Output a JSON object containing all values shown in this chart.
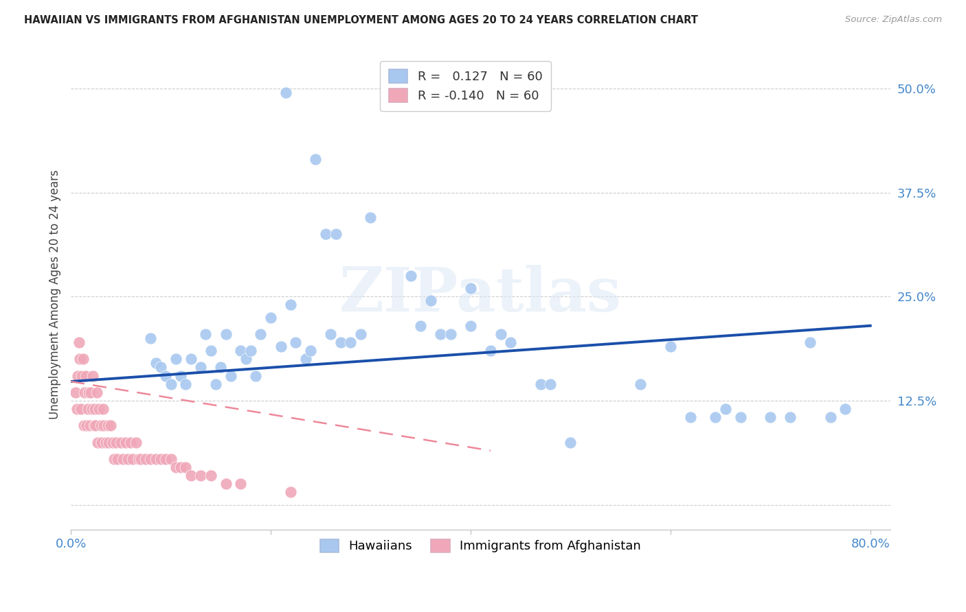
{
  "title": "HAWAIIAN VS IMMIGRANTS FROM AFGHANISTAN UNEMPLOYMENT AMONG AGES 20 TO 24 YEARS CORRELATION CHART",
  "source": "Source: ZipAtlas.com",
  "ylabel": "Unemployment Among Ages 20 to 24 years",
  "xlim": [
    0.0,
    0.82
  ],
  "ylim": [
    -0.03,
    0.535
  ],
  "xticks": [
    0.0,
    0.2,
    0.4,
    0.6,
    0.8
  ],
  "xticklabels": [
    "0.0%",
    "",
    "",
    "",
    "80.0%"
  ],
  "yticks": [
    0.0,
    0.125,
    0.25,
    0.375,
    0.5
  ],
  "yticklabels": [
    "",
    "12.5%",
    "25.0%",
    "37.5%",
    "50.0%"
  ],
  "blue_R": 0.127,
  "blue_N": 60,
  "pink_R": -0.14,
  "pink_N": 60,
  "blue_color": "#a8c8f0",
  "pink_color": "#f0a8b8",
  "blue_line_color": "#1a4faa",
  "pink_line_color": "#ee8899",
  "tick_color": "#4488cc",
  "grid_color": "#cccccc",
  "blue_line_x0": 0.0,
  "blue_line_y0": 0.148,
  "blue_line_x1": 0.8,
  "blue_line_y1": 0.215,
  "pink_line_x0": 0.0,
  "pink_line_y0": 0.148,
  "pink_line_x1": 0.42,
  "pink_line_y1": 0.065,
  "hawaiians_x": [
    0.215,
    0.245,
    0.255,
    0.265,
    0.3,
    0.34,
    0.36,
    0.4,
    0.08,
    0.085,
    0.09,
    0.095,
    0.1,
    0.105,
    0.11,
    0.115,
    0.12,
    0.13,
    0.135,
    0.14,
    0.145,
    0.15,
    0.155,
    0.16,
    0.17,
    0.175,
    0.18,
    0.185,
    0.19,
    0.2,
    0.21,
    0.22,
    0.225,
    0.235,
    0.24,
    0.26,
    0.27,
    0.28,
    0.29,
    0.35,
    0.37,
    0.38,
    0.4,
    0.42,
    0.43,
    0.44,
    0.47,
    0.5,
    0.57,
    0.6,
    0.62,
    0.645,
    0.655,
    0.67,
    0.7,
    0.72,
    0.74,
    0.76,
    0.775,
    0.48
  ],
  "hawaiians_y": [
    0.495,
    0.415,
    0.325,
    0.325,
    0.345,
    0.275,
    0.245,
    0.26,
    0.2,
    0.17,
    0.165,
    0.155,
    0.145,
    0.175,
    0.155,
    0.145,
    0.175,
    0.165,
    0.205,
    0.185,
    0.145,
    0.165,
    0.205,
    0.155,
    0.185,
    0.175,
    0.185,
    0.155,
    0.205,
    0.225,
    0.19,
    0.24,
    0.195,
    0.175,
    0.185,
    0.205,
    0.195,
    0.195,
    0.205,
    0.215,
    0.205,
    0.205,
    0.215,
    0.185,
    0.205,
    0.195,
    0.145,
    0.075,
    0.145,
    0.19,
    0.105,
    0.105,
    0.115,
    0.105,
    0.105,
    0.105,
    0.195,
    0.105,
    0.115,
    0.145
  ],
  "afghans_x": [
    0.005,
    0.006,
    0.007,
    0.008,
    0.009,
    0.01,
    0.011,
    0.012,
    0.013,
    0.014,
    0.015,
    0.016,
    0.017,
    0.018,
    0.019,
    0.02,
    0.021,
    0.022,
    0.023,
    0.024,
    0.025,
    0.026,
    0.027,
    0.028,
    0.03,
    0.031,
    0.032,
    0.033,
    0.035,
    0.037,
    0.038,
    0.04,
    0.042,
    0.043,
    0.045,
    0.047,
    0.05,
    0.052,
    0.055,
    0.057,
    0.06,
    0.062,
    0.065,
    0.068,
    0.07,
    0.075,
    0.08,
    0.085,
    0.09,
    0.095,
    0.1,
    0.105,
    0.11,
    0.115,
    0.12,
    0.13,
    0.14,
    0.155,
    0.17,
    0.22
  ],
  "afghans_y": [
    0.135,
    0.115,
    0.155,
    0.195,
    0.175,
    0.115,
    0.155,
    0.175,
    0.095,
    0.135,
    0.155,
    0.095,
    0.115,
    0.135,
    0.095,
    0.135,
    0.115,
    0.155,
    0.095,
    0.115,
    0.095,
    0.135,
    0.075,
    0.115,
    0.095,
    0.075,
    0.115,
    0.095,
    0.075,
    0.095,
    0.075,
    0.095,
    0.075,
    0.055,
    0.075,
    0.055,
    0.075,
    0.055,
    0.075,
    0.055,
    0.075,
    0.055,
    0.075,
    0.055,
    0.055,
    0.055,
    0.055,
    0.055,
    0.055,
    0.055,
    0.055,
    0.045,
    0.045,
    0.045,
    0.035,
    0.035,
    0.035,
    0.025,
    0.025,
    0.015
  ]
}
